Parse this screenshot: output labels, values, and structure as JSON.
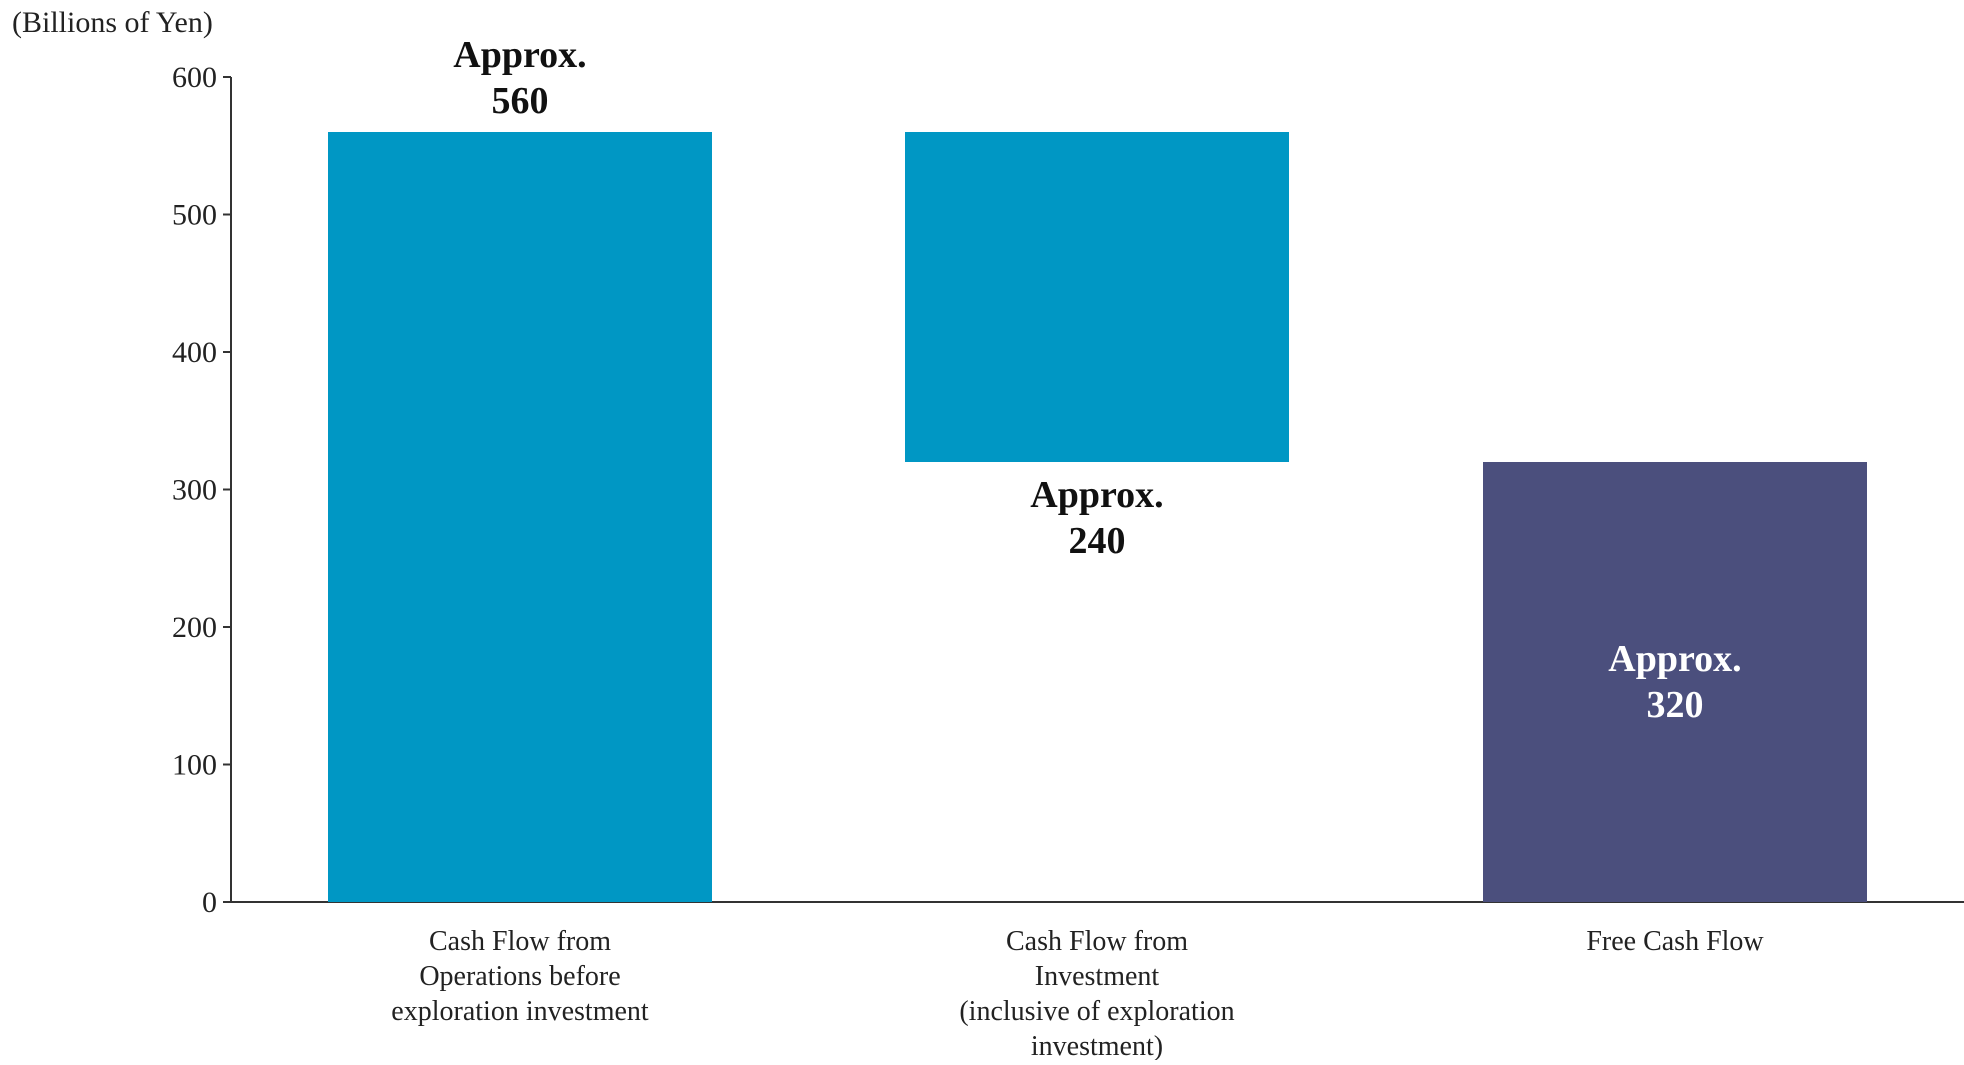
{
  "chart_data": {
    "type": "bar",
    "subtype": "waterfall",
    "unit_label": "(Billions of Yen)",
    "ylim": [
      0,
      600
    ],
    "yticks": [
      0,
      100,
      200,
      300,
      400,
      500,
      600
    ],
    "grid": false,
    "categories": [
      [
        "Cash Flow from",
        "Operations before",
        "exploration investment"
      ],
      [
        "Cash Flow from",
        "Investment",
        "(inclusive of exploration",
        "investment)"
      ],
      [
        "Free Cash Flow"
      ]
    ],
    "bars": [
      {
        "base": 0,
        "value": 560,
        "color": "#0097c4",
        "label": [
          "Approx.",
          "560"
        ],
        "label_position": "above",
        "label_color": "#111111"
      },
      {
        "base": 320,
        "value": 560,
        "color": "#0097c4",
        "label": [
          "Approx.",
          "240"
        ],
        "label_position": "below",
        "label_color": "#111111"
      },
      {
        "base": 0,
        "value": 320,
        "color": "#4b4f7d",
        "label": [
          "Approx.",
          "320"
        ],
        "label_position": "inside",
        "label_color": "#ffffff"
      }
    ],
    "axis_color": "#333333"
  }
}
